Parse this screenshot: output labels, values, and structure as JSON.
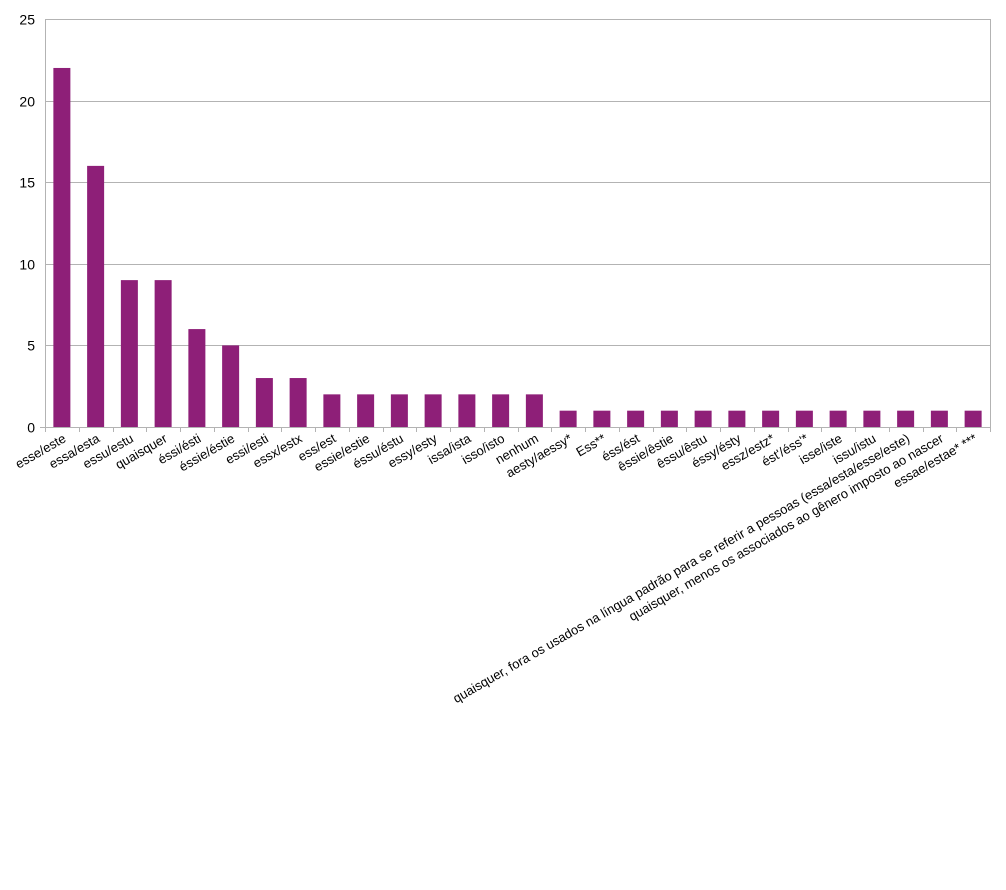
{
  "chart_data": {
    "type": "bar",
    "title": "",
    "xlabel": "",
    "ylabel": "",
    "ylim": [
      0,
      25
    ],
    "yticks": [
      0,
      5,
      10,
      15,
      20,
      25
    ],
    "grid": true,
    "legend": "none",
    "bar_color": "#8E1F78",
    "grid_color": "#B3B3B3",
    "categories": [
      "esse/este",
      "essa/esta",
      "essu/estu",
      "quaisquer",
      "éssi/ésti",
      "éssie/éstie",
      "essi/esti",
      "essx/estx",
      "ess/est",
      "essie/estie",
      "éssu/éstu",
      "essy/esty",
      "issa/ista",
      "isso/isto",
      "nenhum",
      "aesty/aessy*",
      "Ess**",
      "éss/ést",
      "êssie/êstie",
      "êssu/êstu",
      "éssy/ésty",
      "essz/estz*",
      "ést'/éss'*",
      "isse/iste",
      "issu/istu",
      "quaisquer, fora os usados na língua padrão para se referir a pessoas (essa/esta/esse/este)",
      "quaisquer, menos os associados ao gênero imposto ao nascer",
      "essae/estae* ***"
    ],
    "values": [
      22,
      16,
      9,
      9,
      6,
      5,
      3,
      3,
      2,
      2,
      2,
      2,
      2,
      2,
      2,
      1,
      1,
      1,
      1,
      1,
      1,
      1,
      1,
      1,
      1,
      1,
      1,
      1
    ]
  }
}
